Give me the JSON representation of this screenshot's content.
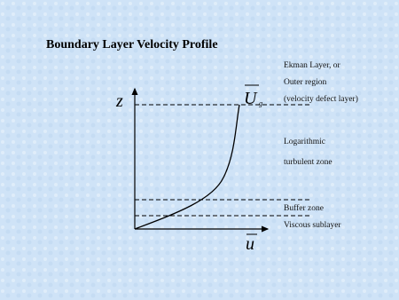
{
  "title": "Boundary Layer Velocity Profile",
  "axes": {
    "vertical": "z",
    "horizontal": "u",
    "top_velocity": "U",
    "top_velocity_subscript": "g"
  },
  "zones": [
    {
      "lines": [
        "Ekman Layer, or",
        "Outer region",
        "(velocity defect layer)"
      ]
    },
    {
      "lines": [
        "Logarithmic",
        "turbulent zone"
      ]
    },
    {
      "lines": [
        "Buffer zone"
      ]
    },
    {
      "lines": [
        "Viscous sublayer"
      ]
    }
  ]
}
